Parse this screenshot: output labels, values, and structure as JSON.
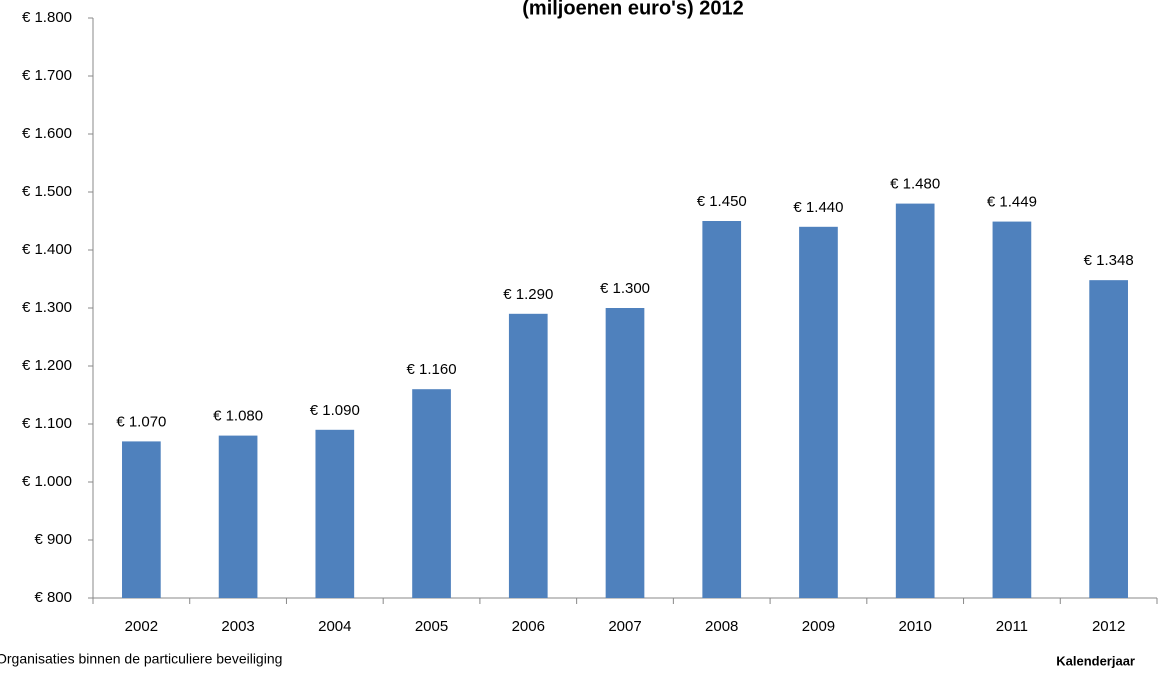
{
  "chart_data": {
    "type": "bar",
    "title": "(miljoenen euro's) 2012",
    "categories": [
      "2002",
      "2003",
      "2004",
      "2005",
      "2006",
      "2007",
      "2008",
      "2009",
      "2010",
      "2011",
      "2012"
    ],
    "values": [
      1070,
      1080,
      1090,
      1160,
      1290,
      1300,
      1450,
      1440,
      1480,
      1449,
      1348
    ],
    "value_labels": [
      "€ 1.070",
      "€ 1.080",
      "€ 1.090",
      "€ 1.160",
      "€ 1.290",
      "€ 1.300",
      "€ 1.450",
      "€ 1.440",
      "€ 1.480",
      "€ 1.449",
      "€ 1.348"
    ],
    "color": "#4f81bd",
    "ylim": [
      800,
      1800
    ],
    "yticks": [
      {
        "value": 800,
        "label": "€ 800"
      },
      {
        "value": 900,
        "label": "€ 900"
      },
      {
        "value": 1000,
        "label": "€ 1.000"
      },
      {
        "value": 1100,
        "label": "€ 1.100"
      },
      {
        "value": 1200,
        "label": "€ 1.200"
      },
      {
        "value": 1300,
        "label": "€ 1.300"
      },
      {
        "value": 1400,
        "label": "€ 1.400"
      },
      {
        "value": 1500,
        "label": "€ 1.500"
      },
      {
        "value": 1600,
        "label": "€ 1.600"
      },
      {
        "value": 1700,
        "label": "€ 1.700"
      },
      {
        "value": 1800,
        "label": "€ 1.800"
      }
    ],
    "grid": false,
    "source": "Organisaties binnen de particuliere beveiliging",
    "xlabel": "Kalenderjaar"
  }
}
